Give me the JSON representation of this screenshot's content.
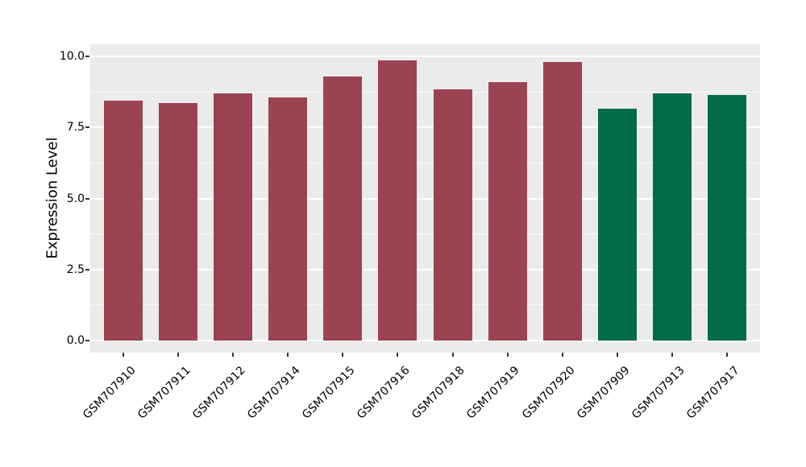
{
  "chart_data": {
    "type": "bar",
    "title": "",
    "xlabel": "",
    "ylabel": "Expression Level",
    "ylim": [
      0,
      10.4
    ],
    "yticks": [
      0,
      2.5,
      5,
      7.5,
      10
    ],
    "ytick_labels": [
      "0.0",
      "2.5",
      "5.0",
      "7.5",
      "10.0"
    ],
    "yticks_minor": [
      1.25,
      3.75,
      6.25,
      8.75
    ],
    "grid": "on",
    "legend_position": "none",
    "categories": [
      "GSM707910",
      "GSM707911",
      "GSM707912",
      "GSM707914",
      "GSM707915",
      "GSM707916",
      "GSM707918",
      "GSM707919",
      "GSM707920",
      "GSM707909",
      "GSM707913",
      "GSM707917"
    ],
    "values": [
      8.45,
      8.35,
      8.7,
      8.55,
      9.3,
      9.85,
      8.85,
      9.1,
      9.8,
      8.15,
      8.7,
      8.65
    ],
    "bar_colors": [
      "#9C4351",
      "#9C4351",
      "#9C4351",
      "#9C4351",
      "#9C4351",
      "#9C4351",
      "#9C4351",
      "#9C4351",
      "#9C4351",
      "#026B49",
      "#026B49",
      "#026B49"
    ]
  },
  "style": {
    "panel_background": "#EBEBEB",
    "grid_major_color": "#FFFFFF",
    "grid_minor_color": "#FFFFFF",
    "red_group_color": "#9C4351",
    "green_group_color": "#026B49",
    "tick_color": "#333333",
    "text_color": "#000000"
  }
}
